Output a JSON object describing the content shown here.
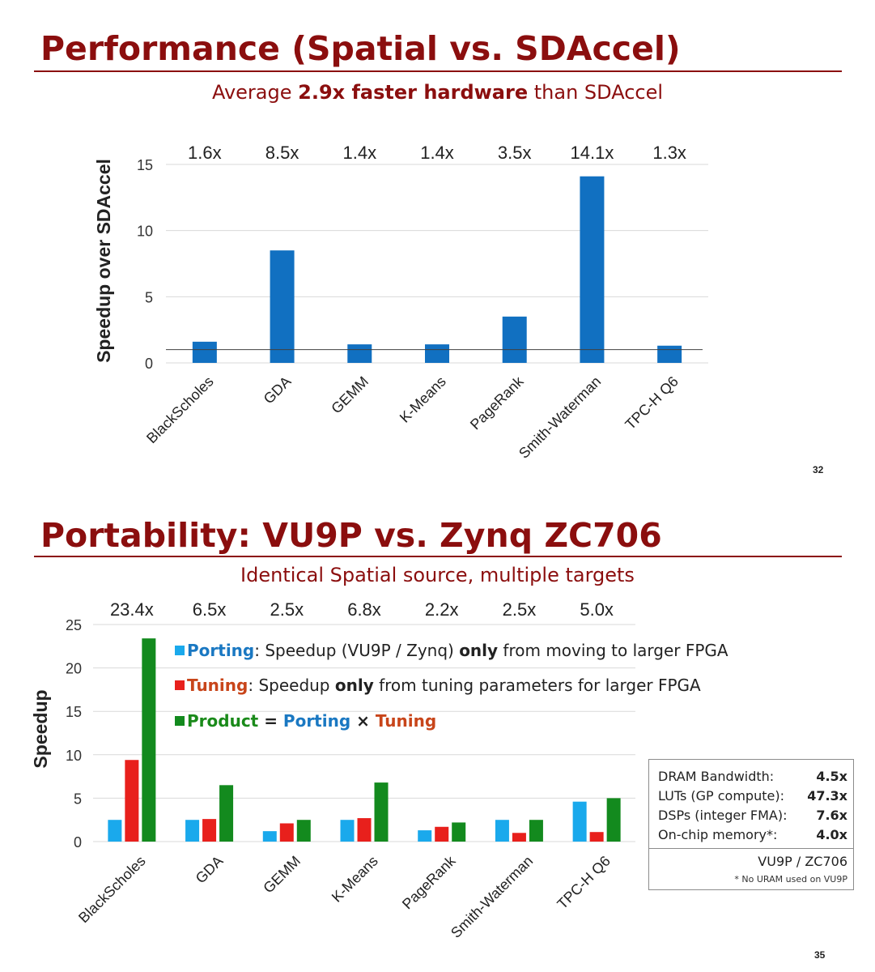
{
  "slide1": {
    "title": "Performance (Spatial vs. SDAccel)",
    "subtitle_pre": "Average ",
    "subtitle_bold": "2.9x faster hardware",
    "subtitle_post": " than SDAccel",
    "page_number": "32"
  },
  "slide2": {
    "title": "Portability: VU9P vs. Zynq ZC706",
    "subtitle": "Identical Spatial source, multiple targets",
    "page_number": "35",
    "legend": {
      "porting_label": "Porting",
      "porting_desc_pre": ":  Speedup (VU9P / Zynq) ",
      "porting_desc_bold": "only",
      "porting_desc_post": " from moving to larger FPGA",
      "tuning_label": "Tuning",
      "tuning_desc_pre": ":   Speedup ",
      "tuning_desc_bold": "only",
      "tuning_desc_post": " from tuning parameters for larger FPGA",
      "product_label": "Product",
      "eq": " = ",
      "times": " × "
    },
    "infobox": {
      "rows": [
        {
          "label": "DRAM Bandwidth:",
          "value": "4.5x"
        },
        {
          "label": "LUTs (GP compute):",
          "value": "47.3x"
        },
        {
          "label": "DSPs (integer FMA):",
          "value": "7.6x"
        },
        {
          "label": "On-chip memory*:",
          "value": "4.0x"
        }
      ],
      "ratio": "VU9P / ZC706",
      "note": "* No URAM used on VU9P"
    }
  },
  "chart_data": [
    {
      "type": "bar",
      "categories": [
        "BlackScholes",
        "GDA",
        "GEMM",
        "K-Means",
        "PageRank",
        "Smith-Waterman",
        "TPC-H Q6"
      ],
      "values": [
        1.6,
        8.5,
        1.4,
        1.4,
        3.5,
        14.1,
        1.3
      ],
      "value_labels": [
        "1.6x",
        "8.5x",
        "1.4x",
        "1.4x",
        "3.5x",
        "14.1x",
        "1.3x"
      ],
      "ylabel": "Speedup over SDAccel",
      "ylim": [
        0,
        15
      ],
      "yticks": [
        0,
        5,
        10,
        15
      ],
      "reference_line": 1,
      "grid": true,
      "colors": {
        "bar": "#1170c1",
        "grid": "#d9d9d9",
        "reference": "#404040"
      }
    },
    {
      "type": "bar",
      "categories": [
        "BlackScholes",
        "GDA",
        "GEMM",
        "K-Means",
        "PageRank",
        "Smith-Waterman",
        "TPC-H Q6"
      ],
      "series": [
        {
          "name": "Porting",
          "values": [
            2.5,
            2.5,
            1.2,
            2.5,
            1.3,
            2.5,
            4.6
          ]
        },
        {
          "name": "Tuning",
          "values": [
            9.4,
            2.6,
            2.1,
            2.7,
            1.7,
            1.0,
            1.1
          ]
        },
        {
          "name": "Product",
          "values": [
            23.4,
            6.5,
            2.5,
            6.8,
            2.2,
            2.5,
            5.0
          ]
        }
      ],
      "value_labels": [
        "23.4x",
        "6.5x",
        "2.5x",
        "6.8x",
        "2.2x",
        "2.5x",
        "5.0x"
      ],
      "ylabel": "Speedup",
      "ylim": [
        0,
        25
      ],
      "yticks": [
        0,
        5,
        10,
        15,
        20,
        25
      ],
      "grid": true,
      "legend_position": "top",
      "colors": {
        "Porting": "#1aa9ec",
        "Tuning": "#e8201c",
        "Product": "#138a1e",
        "grid": "#d9d9d9"
      }
    }
  ]
}
